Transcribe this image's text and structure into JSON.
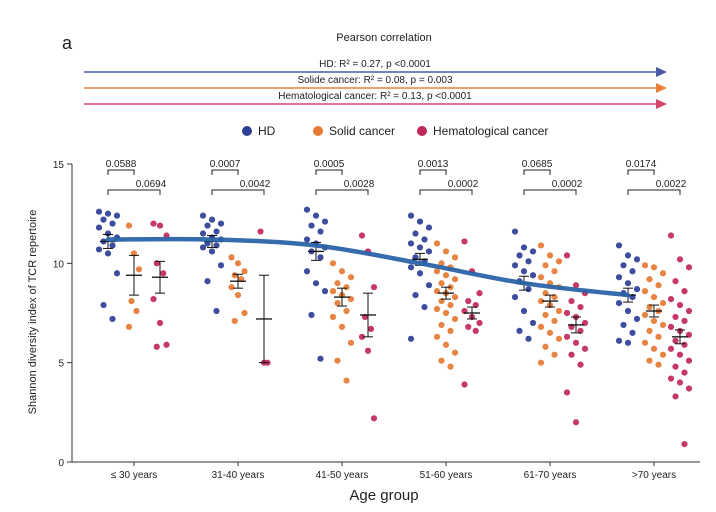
{
  "panel_letter": "a",
  "header": {
    "title": "Pearson correlation",
    "arrows": [
      {
        "label": "HD: R² = 0.27,  p <0.0001",
        "color": "#4a5aa8"
      },
      {
        "label": "Solide cancer: R² = 0.08,  p = 0.003",
        "color": "#e9803a"
      },
      {
        "label": "Hematological cancer: R² = 0.13, p <0.0001",
        "color": "#d8456e"
      }
    ]
  },
  "chart_data": {
    "type": "scatter",
    "ylabel": "Shannon diversity index of TCR repertoire",
    "xlabel": "Age group",
    "ylim": [
      0,
      15
    ],
    "yticks": [
      0,
      5,
      10,
      15
    ],
    "categories": [
      "≤ 30 years",
      "31-40 years",
      "41-50 years",
      "51-60 years",
      "61-70 years",
      ">70 years"
    ],
    "legend": {
      "placement": "top",
      "items": [
        {
          "name": "HD",
          "color": "#2e3f96"
        },
        {
          "name": "Solid cancer",
          "color": "#e67a33"
        },
        {
          "name": "Hematological cancer",
          "color": "#c0275a"
        }
      ]
    },
    "series": [
      {
        "name": "HD",
        "color": "#2e3f96",
        "offset": -1,
        "groups": [
          {
            "mean": 11.1,
            "sem": 0.35,
            "points": [
              12.6,
              12.5,
              12.4,
              12.2,
              12.0,
              11.8,
              11.5,
              11.3,
              11.1,
              10.9,
              10.7,
              10.5,
              9.5,
              7.9,
              7.2
            ]
          },
          {
            "mean": 11.1,
            "sem": 0.3,
            "points": [
              12.4,
              12.2,
              12.0,
              11.9,
              11.6,
              11.5,
              11.3,
              11.2,
              11.0,
              10.9,
              10.8,
              10.6,
              9.9,
              9.1,
              7.6
            ]
          },
          {
            "mean": 10.6,
            "sem": 0.45,
            "points": [
              12.7,
              12.4,
              12.1,
              11.9,
              11.6,
              11.2,
              11.0,
              10.8,
              10.6,
              10.3,
              9.6,
              9.0,
              8.6,
              7.4,
              5.2
            ]
          },
          {
            "mean": 10.2,
            "sem": 0.3,
            "points": [
              12.4,
              12.1,
              11.8,
              11.5,
              11.2,
              11.0,
              10.8,
              10.6,
              10.3,
              10.1,
              9.8,
              9.5,
              8.9,
              8.4,
              7.8,
              6.2
            ]
          },
          {
            "mean": 9.0,
            "sem": 0.35,
            "points": [
              11.6,
              10.8,
              10.6,
              10.4,
              10.1,
              9.9,
              9.6,
              9.4,
              9.1,
              8.7,
              8.3,
              7.6,
              7.0,
              6.6,
              6.2
            ]
          },
          {
            "mean": 8.4,
            "sem": 0.35,
            "points": [
              10.9,
              10.4,
              10.2,
              9.9,
              9.6,
              9.3,
              9.0,
              8.7,
              8.5,
              8.3,
              8.0,
              7.6,
              7.2,
              6.9,
              6.5,
              6.1,
              6.0
            ]
          }
        ]
      },
      {
        "name": "Solid cancer",
        "color": "#e67a33",
        "offset": 0,
        "groups": [
          {
            "mean": 9.4,
            "sem": 1.0,
            "points": [
              11.9,
              10.5,
              9.7,
              8.1,
              7.6,
              6.8
            ]
          },
          {
            "mean": 9.1,
            "sem": 0.35,
            "points": [
              10.3,
              10.0,
              9.6,
              9.4,
              9.2,
              8.8,
              8.4,
              7.5,
              7.1
            ]
          },
          {
            "mean": 8.3,
            "sem": 0.45,
            "points": [
              10.0,
              9.6,
              9.3,
              9.0,
              8.8,
              8.6,
              8.4,
              8.2,
              8.0,
              7.6,
              7.3,
              6.8,
              6.0,
              5.1,
              4.1
            ]
          },
          {
            "mean": 8.5,
            "sem": 0.3,
            "points": [
              11.0,
              10.6,
              10.3,
              10.0,
              9.8,
              9.6,
              9.4,
              9.2,
              9.0,
              8.8,
              8.6,
              8.5,
              8.3,
              8.1,
              7.9,
              7.7,
              7.5,
              7.2,
              6.9,
              6.6,
              6.3,
              5.9,
              5.5,
              5.1,
              4.8
            ]
          },
          {
            "mean": 8.1,
            "sem": 0.3,
            "points": [
              10.9,
              10.4,
              10.1,
              9.9,
              9.6,
              9.3,
              9.0,
              8.8,
              8.5,
              8.3,
              8.1,
              7.9,
              7.6,
              7.4,
              7.1,
              6.8,
              6.5,
              6.2,
              5.8,
              5.4,
              5.0
            ]
          },
          {
            "mean": 7.6,
            "sem": 0.3,
            "points": [
              9.9,
              9.8,
              9.5,
              9.2,
              8.9,
              8.6,
              8.3,
              8.0,
              7.8,
              7.6,
              7.4,
              7.1,
              6.9,
              6.6,
              6.3,
              6.0,
              5.7,
              5.4,
              5.1,
              4.9
            ]
          }
        ]
      },
      {
        "name": "Hematological cancer",
        "color": "#c0275a",
        "offset": 1,
        "groups": [
          {
            "mean": 9.3,
            "sem": 0.8,
            "points": [
              12.0,
              11.9,
              11.4,
              10.0,
              9.5,
              8.2,
              7.0,
              5.9,
              5.8
            ]
          },
          {
            "mean": 7.2,
            "sem": 2.2,
            "points": [
              11.6,
              5.0,
              5.0
            ]
          },
          {
            "mean": 7.4,
            "sem": 1.1,
            "points": [
              11.4,
              10.6,
              8.8,
              7.3,
              6.7,
              6.3,
              5.6,
              2.2
            ]
          },
          {
            "mean": 7.5,
            "sem": 0.3,
            "points": [
              11.1,
              9.6,
              8.5,
              8.1,
              7.9,
              7.6,
              7.3,
              7.0,
              6.8,
              6.6,
              3.9
            ]
          },
          {
            "mean": 6.9,
            "sem": 0.4,
            "points": [
              10.4,
              8.9,
              8.5,
              8.1,
              7.8,
              7.5,
              7.3,
              7.0,
              6.8,
              6.6,
              6.3,
              6.0,
              5.7,
              5.4,
              4.9,
              3.5,
              2.0
            ]
          },
          {
            "mean": 6.3,
            "sem": 0.35,
            "points": [
              11.4,
              10.2,
              9.8,
              9.1,
              8.6,
              8.2,
              7.9,
              7.6,
              7.3,
              7.1,
              6.8,
              6.6,
              6.4,
              6.1,
              5.9,
              5.7,
              5.4,
              5.1,
              4.8,
              4.5,
              4.2,
              4.0,
              3.7,
              3.3,
              0.9
            ]
          }
        ]
      }
    ],
    "trend_line": {
      "color": "#2b63a8",
      "points": [
        11.2,
        11.2,
        10.9,
        10.0,
        9.0,
        8.4
      ]
    },
    "comparisons": [
      {
        "top": "0.0588",
        "bottom": "0.0694"
      },
      {
        "top": "0.0007",
        "bottom": "0.0042"
      },
      {
        "top": "0.0005",
        "bottom": "0.0028"
      },
      {
        "top": "0.0013",
        "bottom": "0.0002"
      },
      {
        "top": "0.0685",
        "bottom": "0.0002"
      },
      {
        "top": "0.0174",
        "bottom": "0.0022"
      }
    ]
  }
}
